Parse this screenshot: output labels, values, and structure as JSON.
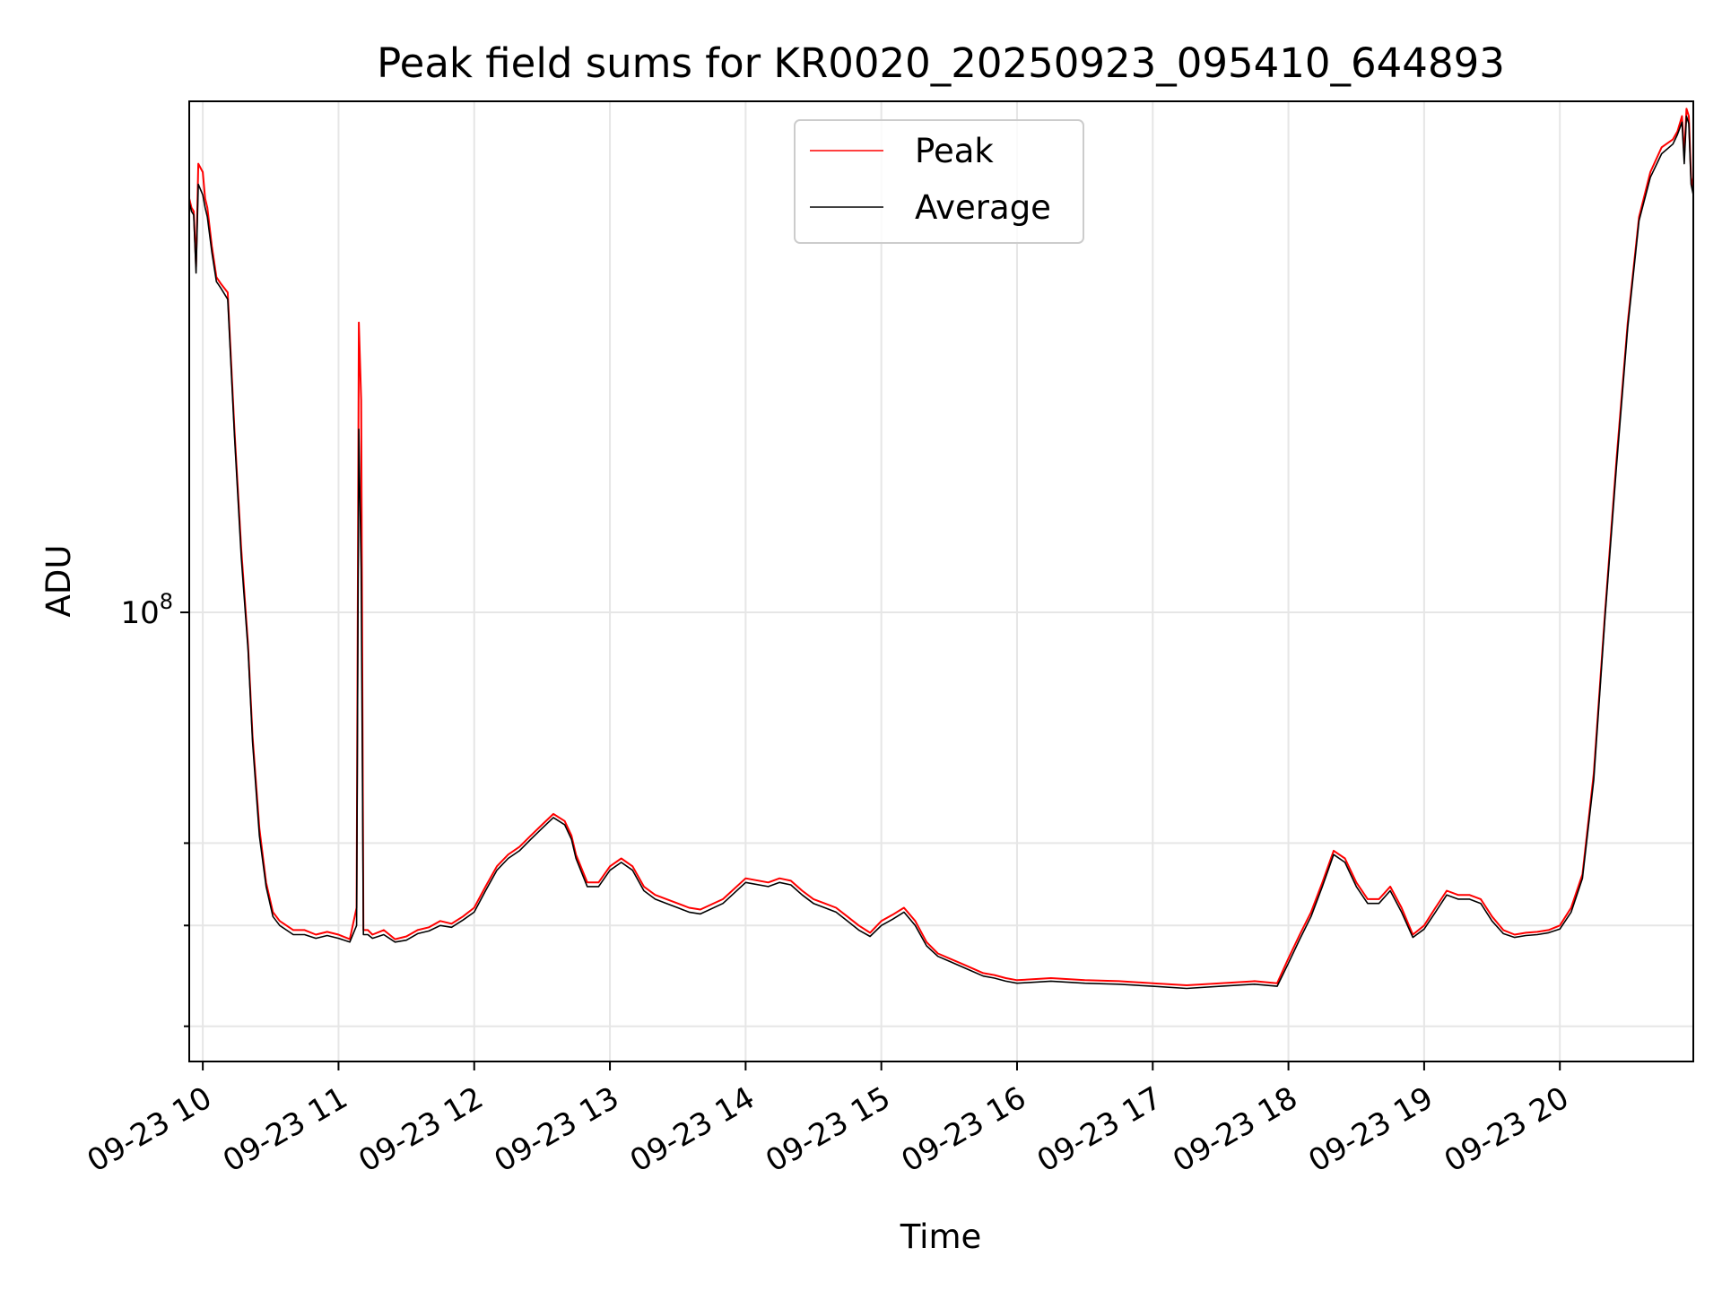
{
  "chart_data": {
    "type": "line",
    "title": "Peak field sums for KR0020_20250923_095410_644893",
    "xlabel": "Time",
    "ylabel": "ADU",
    "x_type": "time",
    "xlim": [
      "09-23 09:54",
      "09-23 20:59"
    ],
    "ylim": [
      37000000,
      310000000
    ],
    "yscale": "log",
    "yticks_major": [
      {
        "value": 100000000,
        "label": "10^8"
      }
    ],
    "yticks_minor": [
      40000000,
      50000000,
      60000000
    ],
    "xticks": [
      "09-23 10",
      "09-23 11",
      "09-23 12",
      "09-23 13",
      "09-23 14",
      "09-23 15",
      "09-23 16",
      "09-23 17",
      "09-23 18",
      "09-23 19",
      "09-23 20"
    ],
    "grid": true,
    "legend_position": "upper center",
    "series": [
      {
        "name": "Peak",
        "color": "#ff0000",
        "x": [
          "09:54",
          "09:55",
          "09:56",
          "09:57",
          "09:58",
          "10:00",
          "10:01",
          "10:02",
          "10:04",
          "10:06",
          "10:08",
          "10:11",
          "10:14",
          "10:17",
          "10:20",
          "10:22",
          "10:25",
          "10:28",
          "10:31",
          "10:34",
          "10:37",
          "10:40",
          "10:45",
          "10:50",
          "10:55",
          "11:00",
          "11:05",
          "11:08",
          "11:09",
          "11:10",
          "11:11",
          "11:13",
          "11:15",
          "11:20",
          "11:25",
          "11:30",
          "11:35",
          "11:40",
          "11:45",
          "11:50",
          "11:55",
          "12:00",
          "12:05",
          "12:10",
          "12:15",
          "12:20",
          "12:25",
          "12:30",
          "12:35",
          "12:40",
          "12:43",
          "12:45",
          "12:50",
          "12:55",
          "13:00",
          "13:05",
          "13:10",
          "13:15",
          "13:20",
          "13:25",
          "13:30",
          "13:35",
          "13:40",
          "13:50",
          "14:00",
          "14:10",
          "14:15",
          "14:20",
          "14:25",
          "14:30",
          "14:35",
          "14:40",
          "14:45",
          "14:50",
          "14:55",
          "15:00",
          "15:05",
          "15:10",
          "15:15",
          "15:20",
          "15:25",
          "15:30",
          "15:35",
          "15:40",
          "15:45",
          "15:50",
          "15:55",
          "16:00",
          "16:15",
          "16:30",
          "16:45",
          "17:00",
          "17:15",
          "17:30",
          "17:45",
          "17:55",
          "18:00",
          "18:05",
          "18:10",
          "18:15",
          "18:20",
          "18:25",
          "18:30",
          "18:35",
          "18:40",
          "18:45",
          "18:50",
          "18:55",
          "19:00",
          "19:05",
          "19:10",
          "19:15",
          "19:20",
          "19:25",
          "19:30",
          "19:35",
          "19:40",
          "19:45",
          "19:50",
          "19:55",
          "20:00",
          "20:05",
          "20:10",
          "20:15",
          "20:20",
          "20:25",
          "20:30",
          "20:35",
          "20:40",
          "20:45",
          "20:50",
          "20:52",
          "20:54",
          "20:55",
          "20:56",
          "20:57",
          "20:58",
          "20:59"
        ],
        "y": [
          250000000,
          245000000,
          243000000,
          215000000,
          270000000,
          265000000,
          250000000,
          245000000,
          225000000,
          210000000,
          207000000,
          203000000,
          150000000,
          115000000,
          93000000,
          76000000,
          62000000,
          55000000,
          51500000,
          50500000,
          50000000,
          49500000,
          49500000,
          49000000,
          49300000,
          49000000,
          48500000,
          52000000,
          190000000,
          160000000,
          49500000,
          49500000,
          49000000,
          49500000,
          48500000,
          48800000,
          49500000,
          49800000,
          50500000,
          50200000,
          51000000,
          52000000,
          54500000,
          57000000,
          58500000,
          59500000,
          61000000,
          62500000,
          64000000,
          63000000,
          61000000,
          58500000,
          55000000,
          55000000,
          57000000,
          58000000,
          57000000,
          54500000,
          53500000,
          53000000,
          52500000,
          52000000,
          51800000,
          53000000,
          55500000,
          55000000,
          55500000,
          55200000,
          54000000,
          53000000,
          52500000,
          52000000,
          51000000,
          50000000,
          49200000,
          50500000,
          51200000,
          52000000,
          50500000,
          48200000,
          47000000,
          46500000,
          46000000,
          45500000,
          45000000,
          44800000,
          44500000,
          44300000,
          44500000,
          44300000,
          44200000,
          44000000,
          43800000,
          44000000,
          44200000,
          44000000,
          46500000,
          49000000,
          51500000,
          55000000,
          59000000,
          58000000,
          55000000,
          53000000,
          53000000,
          54500000,
          52000000,
          49000000,
          50000000,
          52000000,
          54000000,
          53500000,
          53500000,
          53000000,
          51000000,
          49500000,
          49000000,
          49200000,
          49300000,
          49500000,
          50000000,
          52000000,
          56000000,
          70000000,
          100000000,
          140000000,
          190000000,
          240000000,
          265000000,
          280000000,
          285000000,
          290000000,
          300000000,
          275000000,
          305000000,
          300000000,
          262000000,
          255000000
        ]
      },
      {
        "name": "Average",
        "color": "#000000",
        "x": [
          "09:54",
          "09:55",
          "09:56",
          "09:57",
          "09:58",
          "10:00",
          "10:01",
          "10:02",
          "10:04",
          "10:06",
          "10:08",
          "10:11",
          "10:14",
          "10:17",
          "10:20",
          "10:22",
          "10:25",
          "10:28",
          "10:31",
          "10:34",
          "10:37",
          "10:40",
          "10:45",
          "10:50",
          "10:55",
          "11:00",
          "11:05",
          "11:08",
          "11:09",
          "11:10",
          "11:11",
          "11:13",
          "11:15",
          "11:20",
          "11:25",
          "11:30",
          "11:35",
          "11:40",
          "11:45",
          "11:50",
          "11:55",
          "12:00",
          "12:05",
          "12:10",
          "12:15",
          "12:20",
          "12:25",
          "12:30",
          "12:35",
          "12:40",
          "12:43",
          "12:45",
          "12:50",
          "12:55",
          "13:00",
          "13:05",
          "13:10",
          "13:15",
          "13:20",
          "13:25",
          "13:30",
          "13:35",
          "13:40",
          "13:50",
          "14:00",
          "14:10",
          "14:15",
          "14:20",
          "14:25",
          "14:30",
          "14:35",
          "14:40",
          "14:45",
          "14:50",
          "14:55",
          "15:00",
          "15:05",
          "15:10",
          "15:15",
          "15:20",
          "15:25",
          "15:30",
          "15:35",
          "15:40",
          "15:45",
          "15:50",
          "15:55",
          "16:00",
          "16:15",
          "16:30",
          "16:45",
          "17:00",
          "17:15",
          "17:30",
          "17:45",
          "17:55",
          "18:00",
          "18:05",
          "18:10",
          "18:15",
          "18:20",
          "18:25",
          "18:30",
          "18:35",
          "18:40",
          "18:45",
          "18:50",
          "18:55",
          "19:00",
          "19:05",
          "19:10",
          "19:15",
          "19:20",
          "19:25",
          "19:30",
          "19:35",
          "19:40",
          "19:45",
          "19:50",
          "19:55",
          "20:00",
          "20:05",
          "20:10",
          "20:15",
          "20:20",
          "20:25",
          "20:30",
          "20:35",
          "20:40",
          "20:45",
          "20:50",
          "20:52",
          "20:54",
          "20:55",
          "20:56",
          "20:57",
          "20:58",
          "20:59"
        ],
        "y": [
          248000000,
          243000000,
          241000000,
          212000000,
          258000000,
          252000000,
          245000000,
          240000000,
          222000000,
          208000000,
          205000000,
          200000000,
          148000000,
          113000000,
          92000000,
          75000000,
          61000000,
          54500000,
          51000000,
          50000000,
          49500000,
          49000000,
          49000000,
          48600000,
          48900000,
          48600000,
          48200000,
          50000000,
          150000000,
          110000000,
          49000000,
          49000000,
          48600000,
          49000000,
          48200000,
          48400000,
          49100000,
          49400000,
          50000000,
          49800000,
          50600000,
          51500000,
          54000000,
          56500000,
          58000000,
          59000000,
          60500000,
          62000000,
          63500000,
          62500000,
          60500000,
          58000000,
          54500000,
          54500000,
          56500000,
          57500000,
          56500000,
          54000000,
          53000000,
          52500000,
          52000000,
          51500000,
          51300000,
          52500000,
          55000000,
          54500000,
          55000000,
          54700000,
          53500000,
          52500000,
          52000000,
          51500000,
          50500000,
          49500000,
          48800000,
          50000000,
          50700000,
          51500000,
          50000000,
          47800000,
          46700000,
          46200000,
          45700000,
          45200000,
          44700000,
          44500000,
          44200000,
          44000000,
          44200000,
          44000000,
          43900000,
          43700000,
          43500000,
          43700000,
          43900000,
          43700000,
          46000000,
          48500000,
          51000000,
          54500000,
          58500000,
          57500000,
          54500000,
          52500000,
          52500000,
          54000000,
          51500000,
          48700000,
          49600000,
          51500000,
          53500000,
          53000000,
          53000000,
          52500000,
          50500000,
          49100000,
          48700000,
          48900000,
          49000000,
          49200000,
          49600000,
          51500000,
          55500000,
          69000000,
          99000000,
          138000000,
          188000000,
          238000000,
          262000000,
          276000000,
          282000000,
          288000000,
          296000000,
          270000000,
          300000000,
          295000000,
          258000000,
          252000000
        ]
      }
    ]
  }
}
